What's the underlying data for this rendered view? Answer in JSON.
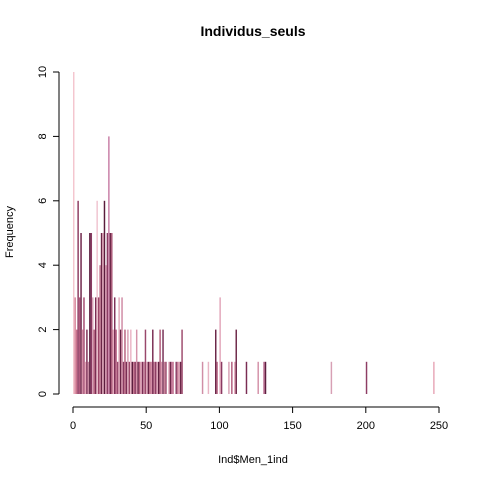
{
  "chart_data": {
    "type": "bar",
    "title": "Individus_seuls",
    "xlabel": "Ind$Men_1ind",
    "ylabel": "Frequency",
    "xlim": [
      0,
      250
    ],
    "ylim": [
      0,
      10
    ],
    "x_ticks": [
      0,
      50,
      100,
      150,
      200,
      250
    ],
    "y_ticks": [
      0,
      2,
      4,
      6,
      8,
      10
    ],
    "grid": false,
    "legend": "none",
    "bar_width": 1,
    "bars": [
      {
        "x": 0,
        "y": 10,
        "color": "#F4C6CF"
      },
      {
        "x": 1,
        "y": 3,
        "color": "#D98BA0"
      },
      {
        "x": 2,
        "y": 2,
        "color": "#C9738E"
      },
      {
        "x": 3,
        "y": 6,
        "color": "#8E3A60"
      },
      {
        "x": 4,
        "y": 3,
        "color": "#B25A7E"
      },
      {
        "x": 5,
        "y": 5,
        "color": "#6E2449"
      },
      {
        "x": 6,
        "y": 2,
        "color": "#D38FA6"
      },
      {
        "x": 7,
        "y": 3,
        "color": "#A34A70"
      },
      {
        "x": 8,
        "y": 1,
        "color": "#E6A6B8"
      },
      {
        "x": 9,
        "y": 2,
        "color": "#7E2D55"
      },
      {
        "x": 10,
        "y": 1,
        "color": "#C98AA2"
      },
      {
        "x": 11,
        "y": 5,
        "color": "#5E1F40"
      },
      {
        "x": 12,
        "y": 5,
        "color": "#8A3A62"
      },
      {
        "x": 13,
        "y": 3,
        "color": "#D7A0B4"
      },
      {
        "x": 14,
        "y": 2,
        "color": "#B5627F"
      },
      {
        "x": 15,
        "y": 3,
        "color": "#7A2D52"
      },
      {
        "x": 16,
        "y": 6,
        "color": "#F0C4D0"
      },
      {
        "x": 17,
        "y": 3,
        "color": "#9C4468"
      },
      {
        "x": 18,
        "y": 4,
        "color": "#C47892"
      },
      {
        "x": 19,
        "y": 5,
        "color": "#6A2446"
      },
      {
        "x": 20,
        "y": 5,
        "color": "#E0A2B6"
      },
      {
        "x": 21,
        "y": 6,
        "color": "#5A1C3C"
      },
      {
        "x": 22,
        "y": 4,
        "color": "#D391A8"
      },
      {
        "x": 23,
        "y": 5,
        "color": "#8C3C63"
      },
      {
        "x": 24,
        "y": 8,
        "color": "#C97FA6"
      },
      {
        "x": 25,
        "y": 5,
        "color": "#6E2849"
      },
      {
        "x": 26,
        "y": 5,
        "color": "#A85575"
      },
      {
        "x": 27,
        "y": 2,
        "color": "#E8B0C0"
      },
      {
        "x": 28,
        "y": 3,
        "color": "#7E3058"
      },
      {
        "x": 29,
        "y": 2,
        "color": "#C0708D"
      },
      {
        "x": 30,
        "y": 1,
        "color": "#9A4A6E"
      },
      {
        "x": 31,
        "y": 3,
        "color": "#E2A8BA"
      },
      {
        "x": 32,
        "y": 2,
        "color": "#6A2647"
      },
      {
        "x": 33,
        "y": 3,
        "color": "#D08AA3"
      },
      {
        "x": 34,
        "y": 1,
        "color": "#8A3B61"
      },
      {
        "x": 35,
        "y": 2,
        "color": "#B8637F"
      },
      {
        "x": 36,
        "y": 1,
        "color": "#7A2E54"
      },
      {
        "x": 37,
        "y": 2,
        "color": "#D9A0B4"
      },
      {
        "x": 38,
        "y": 1,
        "color": "#9E4A6C"
      },
      {
        "x": 39,
        "y": 2,
        "color": "#EAB6C6"
      },
      {
        "x": 40,
        "y": 1,
        "color": "#5C1E3E"
      },
      {
        "x": 41,
        "y": 1,
        "color": "#C3758F"
      },
      {
        "x": 42,
        "y": 1,
        "color": "#8C3A62"
      },
      {
        "x": 43,
        "y": 2,
        "color": "#D594AA"
      },
      {
        "x": 44,
        "y": 1,
        "color": "#6C2648"
      },
      {
        "x": 45,
        "y": 1,
        "color": "#B5607E"
      },
      {
        "x": 46,
        "y": 1,
        "color": "#E4A8BB"
      },
      {
        "x": 47,
        "y": 1,
        "color": "#7C2E55"
      },
      {
        "x": 48,
        "y": 1,
        "color": "#C17A95"
      },
      {
        "x": 49,
        "y": 2,
        "color": "#9A476B"
      },
      {
        "x": 50,
        "y": 1,
        "color": "#E0A4B8"
      },
      {
        "x": 51,
        "y": 1,
        "color": "#682446"
      },
      {
        "x": 52,
        "y": 1,
        "color": "#B8647F"
      },
      {
        "x": 53,
        "y": 1,
        "color": "#D38EA6"
      },
      {
        "x": 54,
        "y": 2,
        "color": "#7A2C53"
      },
      {
        "x": 55,
        "y": 1,
        "color": "#C47E98"
      },
      {
        "x": 56,
        "y": 1,
        "color": "#8E3D64"
      },
      {
        "x": 57,
        "y": 1,
        "color": "#E6AEC0"
      },
      {
        "x": 58,
        "y": 1,
        "color": "#622142"
      },
      {
        "x": 59,
        "y": 2,
        "color": "#B25C7B"
      },
      {
        "x": 60,
        "y": 1,
        "color": "#D99AAF"
      },
      {
        "x": 61,
        "y": 2,
        "color": "#763055"
      },
      {
        "x": 62,
        "y": 1,
        "color": "#C88299"
      },
      {
        "x": 63,
        "y": 1,
        "color": "#9A486B"
      },
      {
        "x": 65,
        "y": 1,
        "color": "#E8B0C2"
      },
      {
        "x": 66,
        "y": 1,
        "color": "#6E2849"
      },
      {
        "x": 67,
        "y": 1,
        "color": "#B8668A"
      },
      {
        "x": 68,
        "y": 1,
        "color": "#D08EA6"
      },
      {
        "x": 70,
        "y": 1,
        "color": "#8A3A61"
      },
      {
        "x": 71,
        "y": 1,
        "color": "#C47B95"
      },
      {
        "x": 72,
        "y": 1,
        "color": "#E2A6BA"
      },
      {
        "x": 73,
        "y": 1,
        "color": "#6A2547"
      },
      {
        "x": 74,
        "y": 2,
        "color": "#9E4B6E"
      },
      {
        "x": 88,
        "y": 1,
        "color": "#D08EA6"
      },
      {
        "x": 92,
        "y": 1,
        "color": "#E8B4C4"
      },
      {
        "x": 97,
        "y": 2,
        "color": "#6C2648"
      },
      {
        "x": 98,
        "y": 1,
        "color": "#C47B96"
      },
      {
        "x": 100,
        "y": 3,
        "color": "#E3A6BA"
      },
      {
        "x": 101,
        "y": 1,
        "color": "#8A3A62"
      },
      {
        "x": 106,
        "y": 1,
        "color": "#D7A0B4"
      },
      {
        "x": 108,
        "y": 1,
        "color": "#B25C7C"
      },
      {
        "x": 110,
        "y": 1,
        "color": "#E6AEC0"
      },
      {
        "x": 111,
        "y": 2,
        "color": "#6E2849"
      },
      {
        "x": 118,
        "y": 1,
        "color": "#7A2D53"
      },
      {
        "x": 126,
        "y": 1,
        "color": "#D390A8"
      },
      {
        "x": 130,
        "y": 1,
        "color": "#B8648A"
      },
      {
        "x": 131,
        "y": 1,
        "color": "#5E1F40"
      },
      {
        "x": 176,
        "y": 1,
        "color": "#D7A0B4"
      },
      {
        "x": 200,
        "y": 1,
        "color": "#8E3D64"
      },
      {
        "x": 246,
        "y": 1,
        "color": "#E8A8B8"
      }
    ]
  }
}
